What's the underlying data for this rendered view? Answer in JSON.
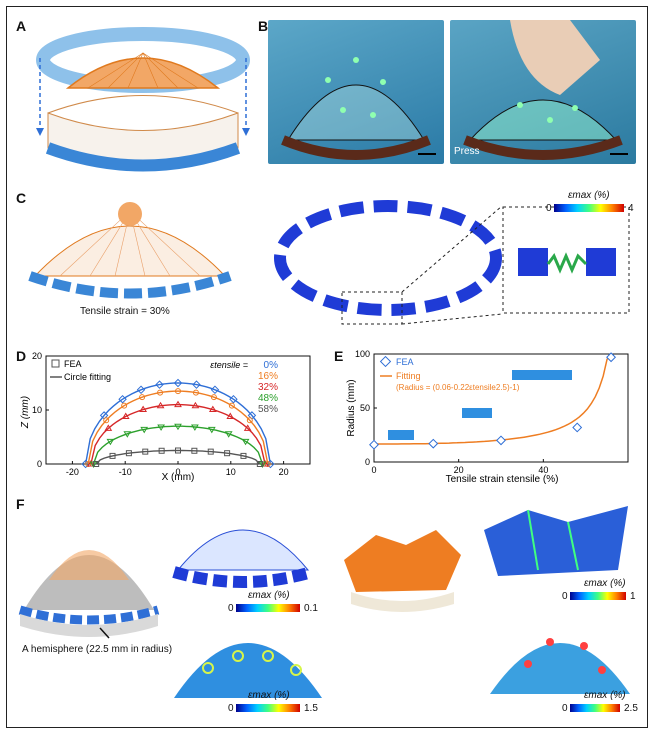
{
  "panels": {
    "A": "A",
    "B": "B",
    "C": "C",
    "D": "D",
    "E": "E",
    "F": "F"
  },
  "panel_b": {
    "press_label": "Press"
  },
  "panel_c": {
    "caption": "Tensile strain = 30%",
    "colorbar_title": "εmax (%)",
    "colorbar_min": "0",
    "colorbar_max": "4"
  },
  "panel_f": {
    "hemisphere_caption": "A hemisphere (22.5 mm in radius)",
    "colorbars": [
      {
        "title": "εmax (%)",
        "min": "0",
        "max": "0.1"
      },
      {
        "title": "εmax (%)",
        "min": "0",
        "max": "1.5"
      },
      {
        "title": "εmax (%)",
        "min": "0",
        "max": "1"
      },
      {
        "title": "εmax (%)",
        "min": "0",
        "max": "2.5"
      }
    ]
  },
  "colors": {
    "blue": "#2f6fd6",
    "orange": "#ee7d22",
    "red": "#d62728",
    "green": "#2ca02c",
    "gray": "#555555"
  },
  "chart_data": [
    {
      "type": "line",
      "panel": "D",
      "xlabel": "X (mm)",
      "ylabel": "Z (mm)",
      "xlim": [
        -25,
        25
      ],
      "ylim": [
        0,
        20
      ],
      "xticks": [
        "-20",
        "-10",
        "0",
        "10",
        "20"
      ],
      "yticks": [
        "0",
        "10",
        "20"
      ],
      "legend": [
        "FEA",
        "Circle fitting"
      ],
      "strain_title": "εtensile = 0%",
      "series": [
        {
          "name": "0%",
          "color": "#2f6fd6",
          "half_width": 17.5,
          "peak": 15.0
        },
        {
          "name": "16%",
          "color": "#ee7d22",
          "half_width": 17.0,
          "peak": 13.5
        },
        {
          "name": "32%",
          "color": "#d62728",
          "half_width": 16.5,
          "peak": 11.0
        },
        {
          "name": "48%",
          "color": "#2ca02c",
          "half_width": 16.0,
          "peak": 7.0
        },
        {
          "name": "58%",
          "color": "#555555",
          "half_width": 15.5,
          "peak": 2.5
        }
      ],
      "legend_labels": [
        "0%",
        "16%",
        "32%",
        "48%",
        "58%"
      ],
      "strain_prefix": "εtensile ="
    },
    {
      "type": "line",
      "panel": "E",
      "xlabel": "Tensile strain εtensile (%)",
      "ylabel": "Radius (mm)",
      "xlim": [
        0,
        60
      ],
      "ylim": [
        0,
        100
      ],
      "xticks": [
        "0",
        "20",
        "40"
      ],
      "yticks": [
        "0",
        "50",
        "100"
      ],
      "legend": [
        "FEA",
        "Fitting"
      ],
      "fit_formula": "(Radius = (0.06-0.22εtensile2.5)-1)",
      "fea_points": [
        [
          0,
          16
        ],
        [
          14,
          17
        ],
        [
          30,
          20
        ],
        [
          48,
          32
        ],
        [
          56,
          97
        ]
      ]
    }
  ]
}
